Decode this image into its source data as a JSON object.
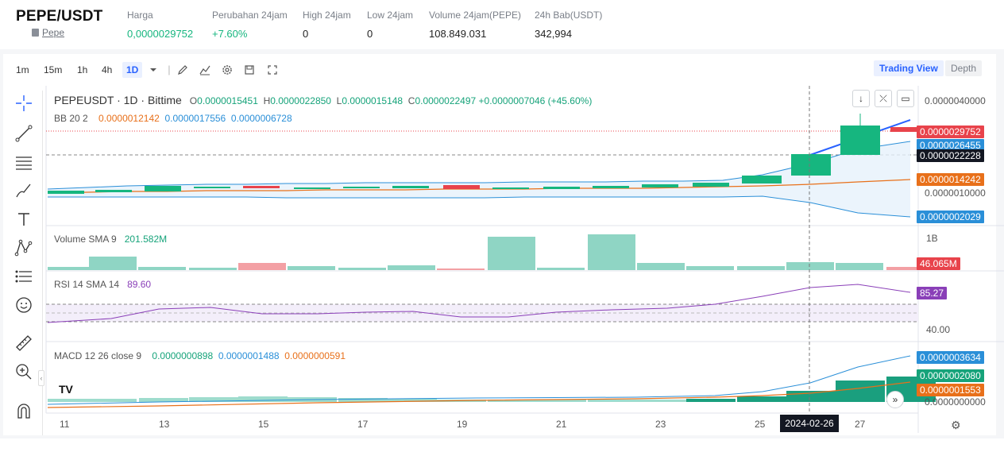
{
  "header": {
    "pair": "PEPE/USDT",
    "coin_link": "Pepe",
    "stats": [
      {
        "label": "Harga",
        "value": "0,0000029752",
        "green": true
      },
      {
        "label": "Perubahan 24jam",
        "value": "+7.60%",
        "green": true
      },
      {
        "label": "High 24jam",
        "value": "0",
        "green": false
      },
      {
        "label": "Low 24jam",
        "value": "0",
        "green": false
      },
      {
        "label": "Volume 24jam(PEPE)",
        "value": "108.849.031",
        "green": false
      },
      {
        "label": "24h Bab(USDT)",
        "value": "342,994",
        "green": false
      }
    ]
  },
  "toolbar": {
    "timeframes": [
      "1m",
      "15m",
      "1h",
      "4h",
      "1D"
    ],
    "active_timeframe": "1D",
    "views": {
      "trading_view": "Trading View",
      "depth": "Depth"
    }
  },
  "legend": {
    "symbol": "PEPEUSDT · 1D · Bittime",
    "o_label": "O",
    "o_val": "0.0000015451",
    "h_label": "H",
    "h_val": "0.0000022850",
    "l_label": "L",
    "l_val": "0.0000015148",
    "c_label": "C",
    "c_val": "0.0000022497",
    "change": "+0.0000007046 (+45.60%)",
    "bb_label": "BB 20 2",
    "bb_mid": "0.0000012142",
    "bb_up": "0.0000017556",
    "bb_low": "0.0000006728",
    "vol_label": "Volume SMA 9",
    "vol_val": "201.582M",
    "rsi_label": "RSI 14 SMA 14",
    "rsi_val": "89.60",
    "macd_label": "MACD 12 26 close 9",
    "macd_v1": "0.0000000898",
    "macd_v2": "0.0000001488",
    "macd_v3": "0.0000000591"
  },
  "axis": {
    "price_ticks": [
      "0.0000040000",
      "0.0000010000"
    ],
    "price_tags": [
      {
        "value": "0.0000029752",
        "color": "#e8434b"
      },
      {
        "value": "0.0000026455",
        "color": "#2a8fd8"
      },
      {
        "value": "0.0000022228",
        "color": "#131722"
      },
      {
        "value": "0.0000014242",
        "color": "#e8701a"
      },
      {
        "value": "0.0000002029",
        "color": "#2a8fd8"
      }
    ],
    "volume_tick": "1B",
    "volume_tag": "46.065M",
    "rsi_tag": "85.27",
    "rsi_tick": "40.00",
    "macd_tags": [
      {
        "value": "0.0000003634",
        "color": "#2a8fd8"
      },
      {
        "value": "0.0000002080",
        "color": "#16a37a"
      },
      {
        "value": "0.0000001553",
        "color": "#e8701a"
      }
    ],
    "macd_tick": "0.0000000000",
    "x_ticks": [
      "11",
      "13",
      "15",
      "17",
      "19",
      "21",
      "23",
      "25",
      "27"
    ],
    "crosshair_date": "2024-02-26"
  },
  "colors": {
    "up": "#16b67f",
    "down": "#e8434b",
    "accent": "#2962ff"
  }
}
